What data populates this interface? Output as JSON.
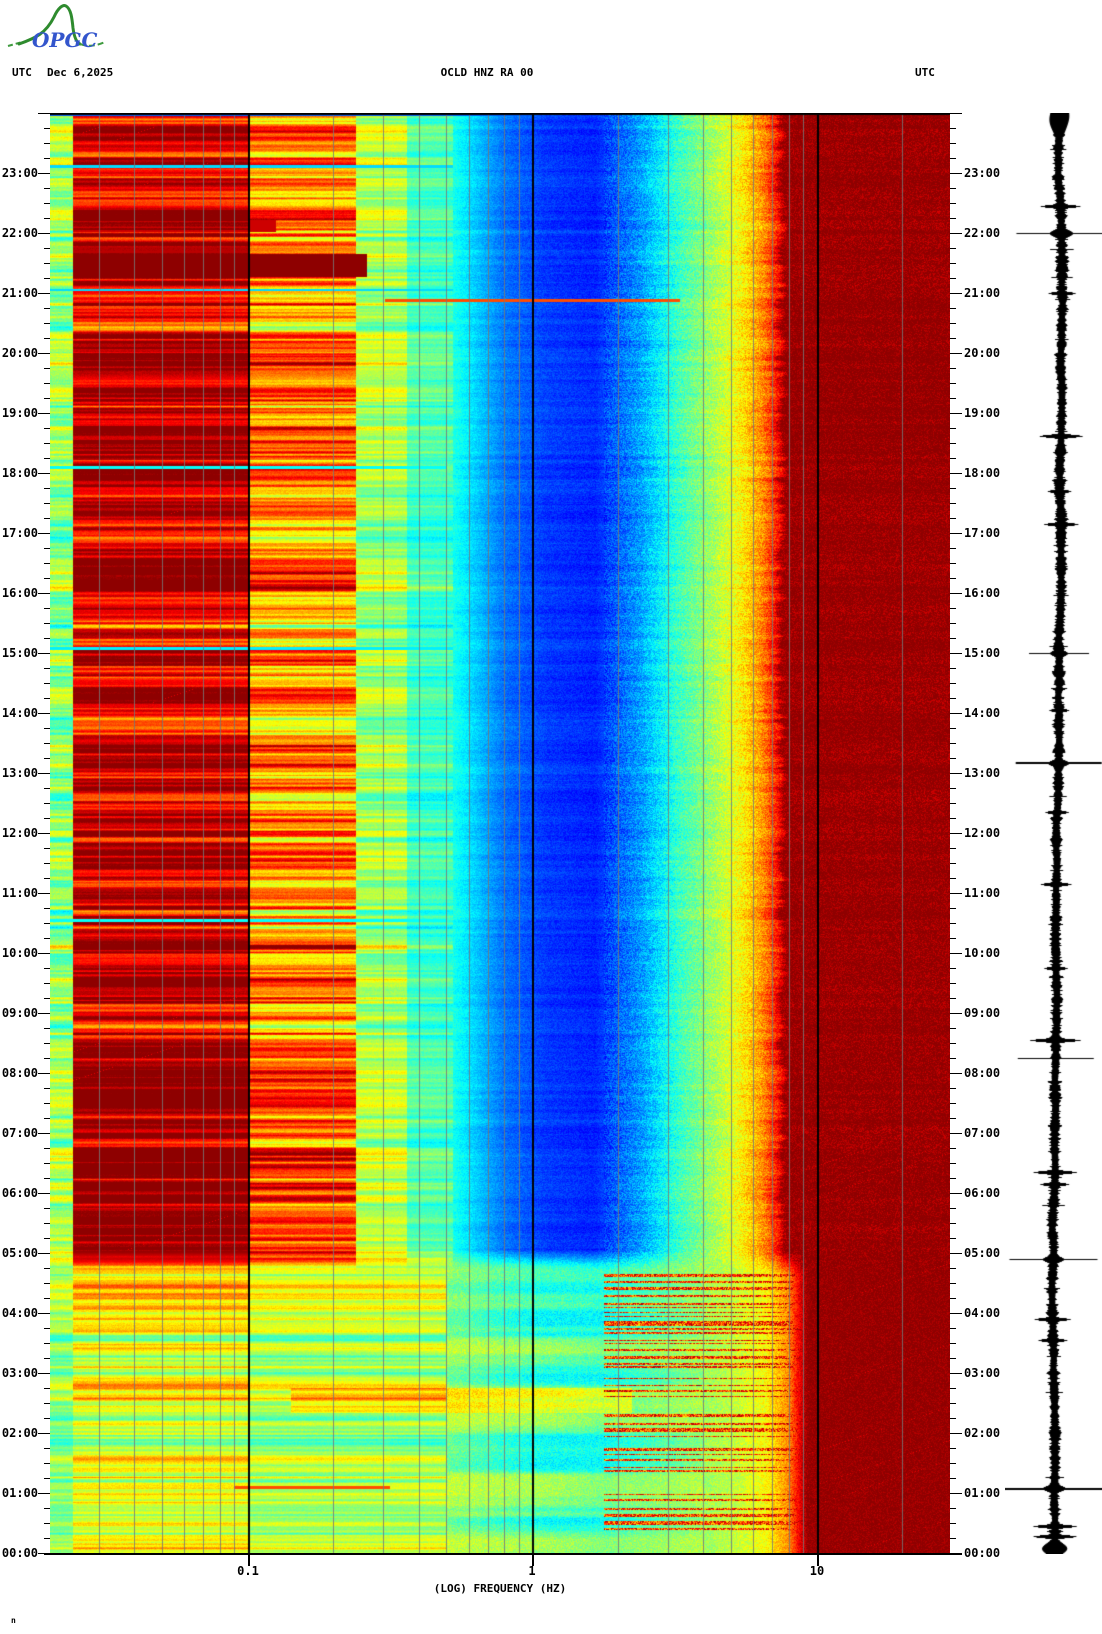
{
  "header": {
    "utc_left": "UTC",
    "date": "Dec 6,2025",
    "title": "OCLD HNZ RA 00",
    "utc_right": "UTC"
  },
  "logo": {
    "text": "OPGC"
  },
  "footer": {
    "xlabel": "(LOG) FREQUENCY (HZ)",
    "corner_mark": "n"
  },
  "y_axis": {
    "hour_labels": [
      "23:00",
      "22:00",
      "21:00",
      "20:00",
      "19:00",
      "18:00",
      "17:00",
      "16:00",
      "15:00",
      "14:00",
      "13:00",
      "12:00",
      "11:00",
      "10:00",
      "09:00",
      "08:00",
      "07:00",
      "06:00",
      "05:00",
      "04:00",
      "03:00",
      "02:00",
      "01:00",
      "00:00"
    ],
    "minor_tick_minutes": 15
  },
  "chart_data": {
    "type": "heatmap",
    "title": "OCLD HNZ RA 00",
    "subtitle_date": "Dec 6,2025",
    "xlabel": "(LOG) FREQUENCY (HZ)",
    "x_scale": "log",
    "x_range_hz": [
      0.02,
      30
    ],
    "y_range_hours_utc": [
      0,
      24
    ],
    "colormap": "jet",
    "x_ticks": [
      {
        "label": "0.1",
        "hz": 0.1
      },
      {
        "label": "1",
        "hz": 1
      },
      {
        "label": "10",
        "hz": 10
      }
    ],
    "x_grid_minor_hz": [
      0.03,
      0.04,
      0.05,
      0.06,
      0.07,
      0.08,
      0.09,
      0.2,
      0.3,
      0.4,
      0.5,
      0.6,
      0.7,
      0.8,
      0.9,
      2,
      3,
      4,
      5,
      6,
      7,
      8,
      9,
      20
    ],
    "x_grid_major_hz": [
      0.1,
      1,
      10
    ],
    "regime_change_hour": 4.85,
    "profile_day": [
      [
        -1.7,
        0.52
      ],
      [
        -0.28,
        0.4
      ],
      [
        -0.1,
        0.24
      ],
      [
        0.05,
        0.18
      ],
      [
        0.22,
        0.16
      ],
      [
        0.38,
        0.28
      ],
      [
        0.52,
        0.44
      ],
      [
        0.64,
        0.54
      ],
      [
        0.74,
        0.64
      ],
      [
        0.81,
        0.74
      ],
      [
        0.86,
        0.86
      ],
      [
        0.885,
        1.0
      ],
      [
        1.5,
        1.0
      ]
    ],
    "profile_night": [
      [
        -1.7,
        0.52
      ],
      [
        -0.3,
        0.52
      ],
      [
        0.0,
        0.46
      ],
      [
        0.25,
        0.44
      ],
      [
        0.5,
        0.5
      ],
      [
        0.7,
        0.56
      ],
      [
        0.82,
        0.62
      ],
      [
        0.9,
        0.74
      ],
      [
        0.945,
        0.92
      ],
      [
        0.97,
        1.0
      ],
      [
        1.5,
        1.0
      ]
    ],
    "features": [
      {
        "t0": 21.28,
        "t1": 21.66,
        "lf0": -1.615,
        "lf1": -0.58,
        "op": "max",
        "v": 1.0
      },
      {
        "t0": 21.66,
        "t1": 21.78,
        "lf0": -1.615,
        "lf1": -1.0,
        "op": "max",
        "v": 0.95
      },
      {
        "t0": 22.02,
        "t1": 22.22,
        "lf0": -1.615,
        "lf1": -0.9,
        "op": "max",
        "v": 0.93
      },
      {
        "t0": 22.3,
        "t1": 22.42,
        "lf0": -1.615,
        "lf1": -1.0,
        "op": "max",
        "v": 0.92
      },
      {
        "t0": 20.86,
        "t1": 20.9,
        "lf0": -0.52,
        "lf1": 0.52,
        "op": "max",
        "v": 0.8
      },
      {
        "t0": 1.07,
        "t1": 1.13,
        "lf0": -1.05,
        "lf1": -0.5,
        "op": "max",
        "v": 0.8
      },
      {
        "t0": 2.35,
        "t1": 2.75,
        "lf0": -0.85,
        "lf1": 0.35,
        "op": "add",
        "v": 0.1
      },
      {
        "t0": 23.1,
        "t1": 23.14,
        "lf0": -1.7,
        "lf1": -0.28,
        "op": "min",
        "v": 0.34
      },
      {
        "t0": 21.04,
        "t1": 21.08,
        "lf0": -1.7,
        "lf1": -0.28,
        "op": "min",
        "v": 0.34
      },
      {
        "t0": 15.06,
        "t1": 15.1,
        "lf0": -1.7,
        "lf1": -0.28,
        "op": "min",
        "v": 0.36
      },
      {
        "t0": 18.08,
        "t1": 18.12,
        "lf0": -1.7,
        "lf1": -0.3,
        "op": "min",
        "v": 0.38
      },
      {
        "t0": 10.53,
        "t1": 10.57,
        "lf0": -1.7,
        "lf1": -0.3,
        "op": "min",
        "v": 0.38
      }
    ],
    "night_bursts": {
      "t0": 3.8,
      "t1": 4.65,
      "lf0": 0.25,
      "lf1": 0.96,
      "v": 0.82
    },
    "trace_events": [
      [
        23.93,
        11,
        20
      ],
      [
        22.0,
        45,
        1
      ],
      [
        22.0,
        13,
        5
      ],
      [
        22.45,
        22,
        2
      ],
      [
        21.0,
        15,
        2
      ],
      [
        18.62,
        24,
        2
      ],
      [
        17.7,
        13,
        2
      ],
      [
        17.15,
        19,
        2
      ],
      [
        15.0,
        30,
        1
      ],
      [
        15.0,
        10,
        4
      ],
      [
        14.05,
        11,
        2
      ],
      [
        13.17,
        43,
        1
      ],
      [
        13.17,
        12,
        4
      ],
      [
        12.35,
        13,
        2
      ],
      [
        11.15,
        17,
        2
      ],
      [
        9.75,
        13,
        2
      ],
      [
        8.55,
        28,
        2
      ],
      [
        8.25,
        38,
        1
      ],
      [
        6.35,
        24,
        2
      ],
      [
        6.15,
        16,
        2
      ],
      [
        4.9,
        44,
        1
      ],
      [
        4.9,
        12,
        4
      ],
      [
        3.9,
        20,
        2
      ],
      [
        3.55,
        16,
        2
      ],
      [
        1.08,
        50,
        1
      ],
      [
        1.08,
        13,
        4
      ],
      [
        0.45,
        24,
        2
      ],
      [
        0.28,
        24,
        2
      ],
      [
        0.08,
        14,
        8
      ]
    ]
  }
}
